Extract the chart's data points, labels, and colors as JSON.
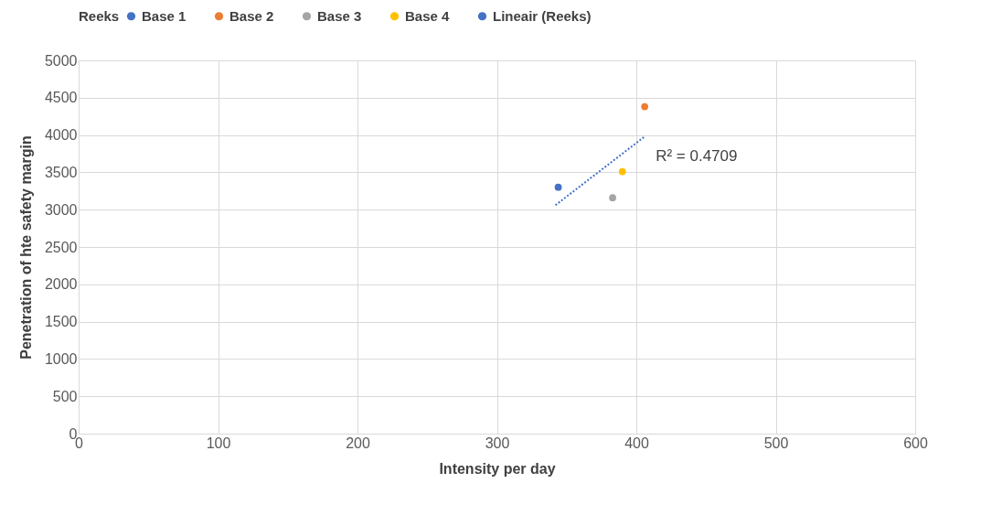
{
  "chart_data": {
    "type": "scatter",
    "xlabel": "Intensity per day",
    "ylabel": "Penetration of hte safety margin",
    "legend_title": "Reeks",
    "legend": "top",
    "series": [
      {
        "name": "Base 1",
        "color": "#4472c4",
        "marker": "circle",
        "x": [
          344
        ],
        "values": [
          3300
        ]
      },
      {
        "name": "Base 2",
        "color": "#ed7d31",
        "marker": "circle",
        "x": [
          406
        ],
        "values": [
          4380
        ]
      },
      {
        "name": "Base 3",
        "color": "#a5a5a5",
        "marker": "circle",
        "x": [
          383
        ],
        "values": [
          3160
        ]
      },
      {
        "name": "Base 4",
        "color": "#ffc000",
        "marker": "circle",
        "x": [
          390
        ],
        "values": [
          3510
        ]
      },
      {
        "name": "Lineair (Reeks)",
        "type": "line",
        "line_style": "dotted",
        "color": "#4472c4",
        "x": [
          342,
          406
        ],
        "values": [
          3060,
          3980
        ]
      }
    ],
    "annotations": [
      "R² = 0.4709"
    ],
    "grid": true,
    "xlim": [
      0,
      600
    ],
    "xticks": [
      0,
      100,
      200,
      300,
      400,
      500,
      600
    ],
    "ylim": [
      0,
      5000
    ],
    "yticks": [
      0,
      500,
      1000,
      1500,
      2000,
      2500,
      3000,
      3500,
      4000,
      4500,
      5000
    ]
  }
}
